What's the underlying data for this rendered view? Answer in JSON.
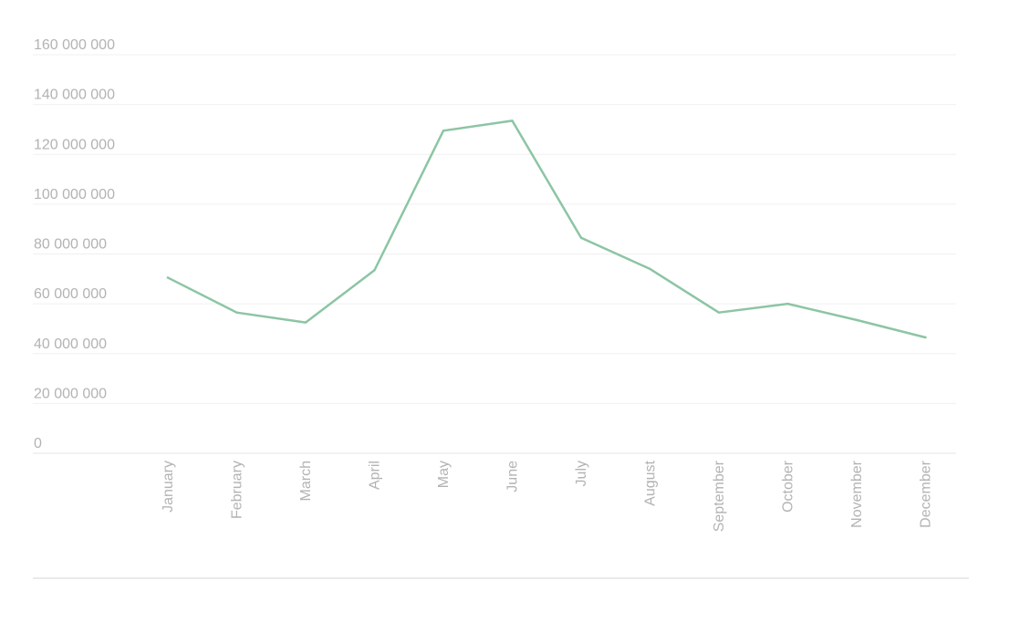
{
  "chart_data": {
    "type": "line",
    "title": "",
    "xlabel": "",
    "ylabel": "",
    "categories": [
      "January",
      "February",
      "March",
      "April",
      "May",
      "June",
      "July",
      "August",
      "September",
      "October",
      "November",
      "December"
    ],
    "series": [
      {
        "values": [
          70500000,
          56500000,
          52500000,
          73500000,
          129500000,
          133500000,
          86500000,
          74000000,
          56500000,
          60000000,
          53500000,
          46500000
        ]
      }
    ],
    "ylim": [
      0,
      160000000
    ],
    "y_ticks": [
      0,
      20000000,
      40000000,
      60000000,
      80000000,
      100000000,
      120000000,
      140000000,
      160000000
    ],
    "y_tick_labels": [
      "0",
      "20 000 000",
      "40 000 000",
      "60 000 000",
      "80 000 000",
      "100 000 000",
      "120 000 000",
      "140 000 000",
      "160 000 000"
    ],
    "grid": true,
    "legend": "none",
    "colors": {
      "line": "#8cc5a4",
      "tick_text": "#b3b3b3",
      "grid": "#f0f0f0"
    }
  }
}
